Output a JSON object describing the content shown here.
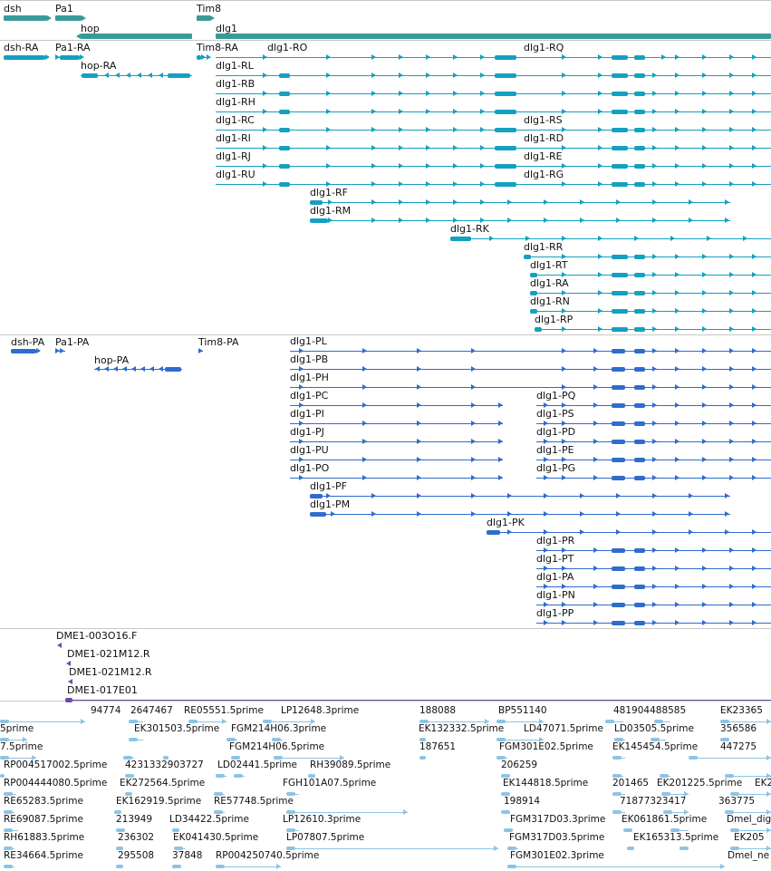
{
  "colors": {
    "gene": "#3a9a9a",
    "transcript": "#14a0bf",
    "protein": "#2f6ccc",
    "probe": "#6a4fa8",
    "est": "#8cc4e6",
    "separator": "#c8c8c8"
  },
  "tracks": {
    "genes": {
      "items": [
        {
          "name": "dsh",
          "strand": "+"
        },
        {
          "name": "Pa1",
          "strand": "+"
        },
        {
          "name": "hop",
          "strand": "-"
        },
        {
          "name": "Tim8",
          "strand": "+"
        },
        {
          "name": "dlg1",
          "strand": "+"
        }
      ]
    },
    "transcripts": {
      "items": [
        {
          "name": "dsh-RA"
        },
        {
          "name": "Pa1-RA"
        },
        {
          "name": "hop-RA"
        },
        {
          "name": "Tim8-RA"
        },
        {
          "name": "dlg1-RO"
        },
        {
          "name": "dlg1-RQ"
        },
        {
          "name": "dlg1-RL"
        },
        {
          "name": "dlg1-RB"
        },
        {
          "name": "dlg1-RH"
        },
        {
          "name": "dlg1-RC"
        },
        {
          "name": "dlg1-RS"
        },
        {
          "name": "dlg1-RI"
        },
        {
          "name": "dlg1-RD"
        },
        {
          "name": "dlg1-RJ"
        },
        {
          "name": "dlg1-RE"
        },
        {
          "name": "dlg1-RU"
        },
        {
          "name": "dlg1-RG"
        },
        {
          "name": "dlg1-RF"
        },
        {
          "name": "dlg1-RM"
        },
        {
          "name": "dlg1-RK"
        },
        {
          "name": "dlg1-RR"
        },
        {
          "name": "dlg1-RT"
        },
        {
          "name": "dlg1-RA"
        },
        {
          "name": "dlg1-RN"
        },
        {
          "name": "dlg1-RP"
        }
      ]
    },
    "proteins": {
      "items": [
        {
          "name": "dsh-PA"
        },
        {
          "name": "Pa1-PA"
        },
        {
          "name": "hop-PA"
        },
        {
          "name": "Tim8-PA"
        },
        {
          "name": "dlg1-PL"
        },
        {
          "name": "dlg1-PB"
        },
        {
          "name": "dlg1-PH"
        },
        {
          "name": "dlg1-PC"
        },
        {
          "name": "dlg1-PQ"
        },
        {
          "name": "dlg1-PI"
        },
        {
          "name": "dlg1-PS"
        },
        {
          "name": "dlg1-PJ"
        },
        {
          "name": "dlg1-PD"
        },
        {
          "name": "dlg1-PU"
        },
        {
          "name": "dlg1-PE"
        },
        {
          "name": "dlg1-PO"
        },
        {
          "name": "dlg1-PG"
        },
        {
          "name": "dlg1-PF"
        },
        {
          "name": "dlg1-PM"
        },
        {
          "name": "dlg1-PK"
        },
        {
          "name": "dlg1-PR"
        },
        {
          "name": "dlg1-PT"
        },
        {
          "name": "dlg1-PA"
        },
        {
          "name": "dlg1-PN"
        },
        {
          "name": "dlg1-PP"
        }
      ]
    },
    "probes": {
      "items": [
        {
          "name": "DME1-003O16.F"
        },
        {
          "name": "DME1-021M12.R"
        },
        {
          "name": "DME1-021M12.R"
        },
        {
          "name": "DME1-017E01"
        }
      ]
    },
    "ests": {
      "items": [
        "94774",
        "2647467",
        "RE05551.5prime",
        "LP12648.3prime",
        "188088",
        "BP551140",
        "481904488585",
        "EK23365",
        "5prime",
        "EK301503.5prime",
        "FGM214H06.3prime",
        "EK132332.5prime",
        "LD47071.5prime",
        "LD03505.5prime",
        "356586",
        "7.5prime",
        "FGM214H06.5prime",
        "187651",
        "FGM301E02.5prime",
        "EK145454.5prime",
        "447275",
        "RP004517002.5prime",
        "4231332903727",
        "LD02441.5prime",
        "RH39089.5prime",
        "206259",
        "RP004444080.5prime",
        "EK272564.5prime",
        "FGH101A07.5prime",
        "EK144818.5prime",
        "201465",
        "EK201225.5prime",
        "EK2",
        "RE65283.5prime",
        "EK162919.5prime",
        "RE57748.5prime",
        "198914",
        "71877323417",
        "363775",
        "RE69087.5prime",
        "213949",
        "LD34422.5prime",
        "LP12610.3prime",
        "FGM317D03.3prime",
        "EK061861.5prime",
        "Dmel_dig",
        "RH61883.5prime",
        "236302",
        "EK041430.5prime",
        "LP07807.5prime",
        "FGM317D03.5prime",
        "EK165313.5prime",
        "EK205",
        "RE34664.5prime",
        "295508",
        "37848",
        "RP004250740.5prime",
        "FGM301E02.3prime",
        "Dmel_ne"
      ]
    }
  }
}
